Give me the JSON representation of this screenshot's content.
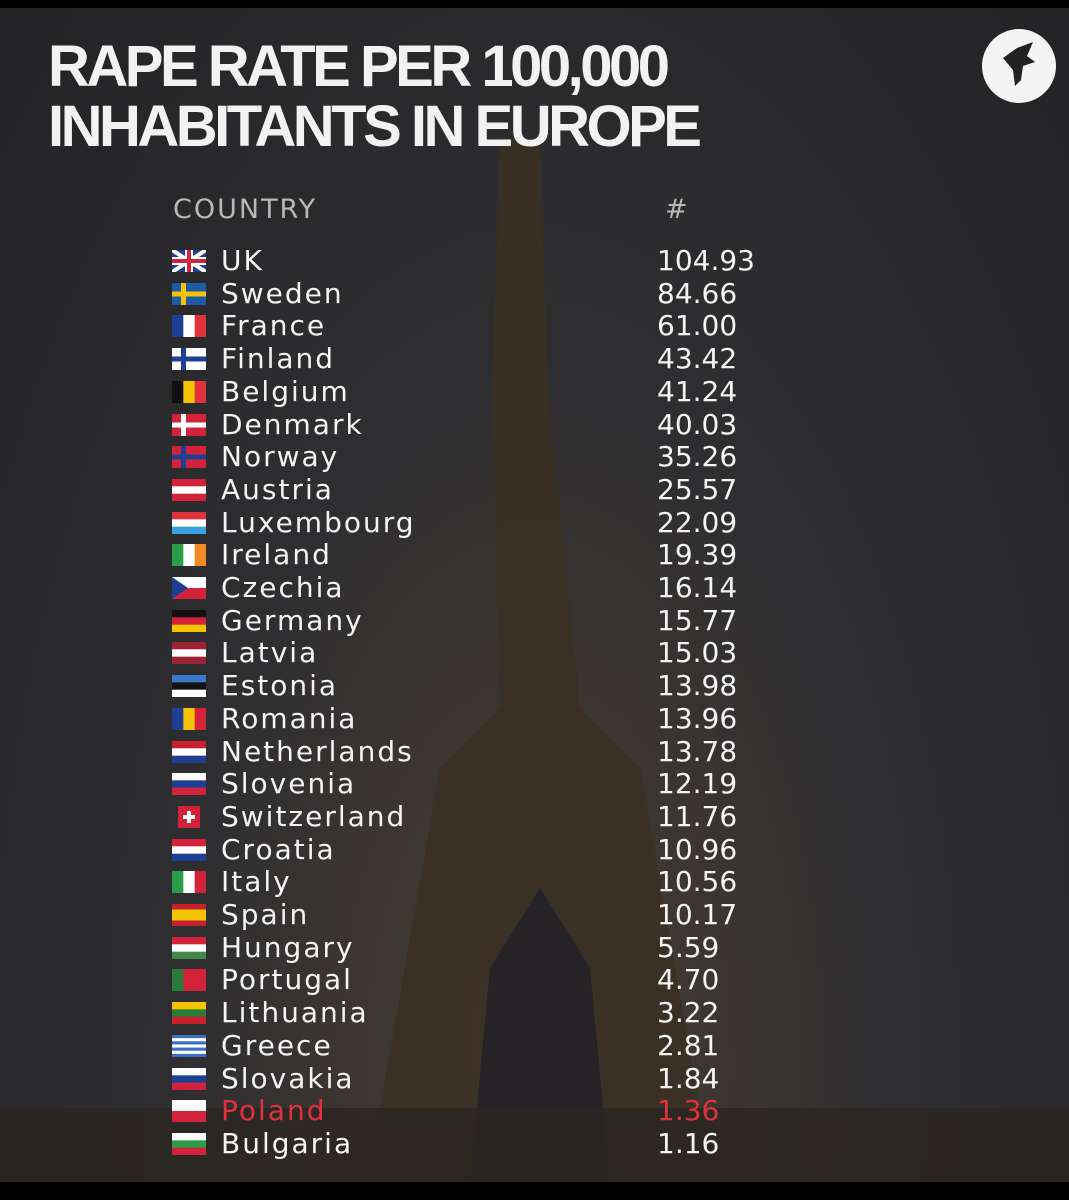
{
  "header": {
    "title": [
      "RAPE RATE PER 100,000",
      "INHABITANTS IN EUROPE"
    ]
  },
  "table": {
    "columns": [
      "COUNTRY",
      "#"
    ],
    "rows": [
      [
        "UK",
        "104.93"
      ],
      [
        "Sweden",
        "84.66"
      ],
      [
        "France",
        "61.00"
      ],
      [
        "Finland",
        "43.42"
      ],
      [
        "Belgium",
        "41.24"
      ],
      [
        "Denmark",
        "40.03"
      ],
      [
        "Norway",
        "35.26"
      ],
      [
        "Austria",
        "25.57"
      ],
      [
        "Luxembourg",
        "22.09"
      ],
      [
        "Ireland",
        "19.39"
      ],
      [
        "Czechia",
        "16.14"
      ],
      [
        "Germany",
        "15.77"
      ],
      [
        "Latvia",
        "15.03"
      ],
      [
        "Estonia",
        "13.98"
      ],
      [
        "Romania",
        "13.96"
      ],
      [
        "Netherlands",
        "13.78"
      ],
      [
        "Slovenia",
        "12.19"
      ],
      [
        "Switzerland",
        "11.76"
      ],
      [
        "Croatia",
        "10.96"
      ],
      [
        "Italy",
        "10.56"
      ],
      [
        "Spain",
        "10.17"
      ],
      [
        "Hungary",
        "5.59"
      ],
      [
        "Portugal",
        "4.70"
      ],
      [
        "Lithuania",
        "3.22"
      ],
      [
        "Greece",
        "2.81"
      ],
      [
        "Slovakia",
        "1.84"
      ],
      [
        "Poland",
        "1.36"
      ],
      [
        "Bulgaria",
        "1.16"
      ]
    ]
  }
}
